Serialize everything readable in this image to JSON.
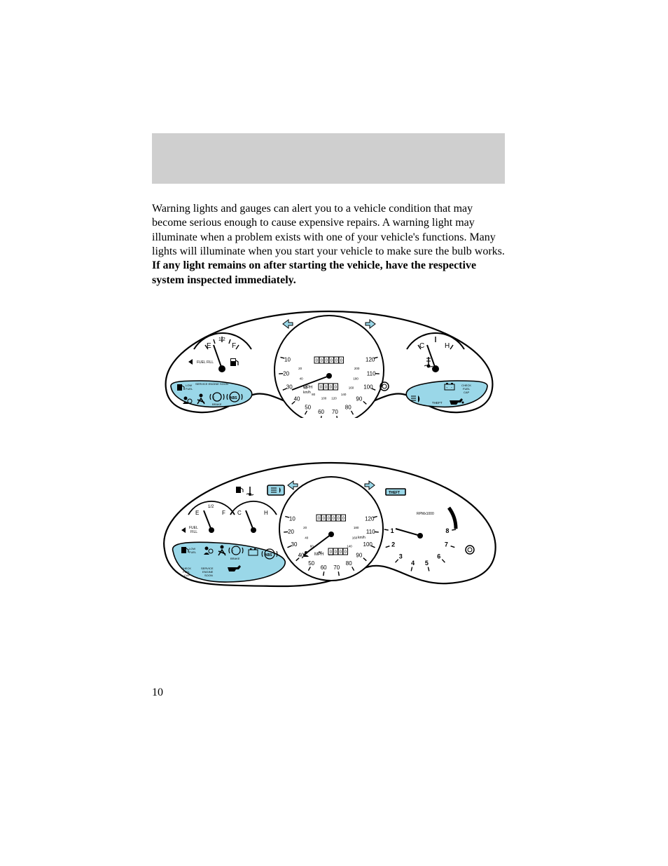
{
  "header": {
    "bg": "#cfcfcf"
  },
  "paragraph": {
    "p1": "Warning lights and gauges can alert you to a vehicle condition that may become serious enough to cause expensive repairs. A warning light may illuminate when a problem exists with one of your vehicle's functions. Many lights will illuminate when you start your vehicle to make sure the bulb works. ",
    "bold": "If any light remains on after starting the vehicle, have the respective system inspected immediately."
  },
  "page_number": "10",
  "colors": {
    "panel_fill": "#9ad7e8",
    "body_fill": "#ffffff",
    "stroke": "#000000",
    "header_grey": "#cfcfcf"
  },
  "cluster1": {
    "type": "instrument-cluster",
    "speedo": {
      "ticks": [
        "10",
        "20",
        "30",
        "40",
        "50",
        "60",
        "70",
        "80",
        "90",
        "100",
        "110",
        "120"
      ],
      "inner_ticks": [
        "20",
        "40",
        "60",
        "80",
        "100",
        "120",
        "140",
        "160",
        "180",
        "200"
      ],
      "unit1": "MPH",
      "unit2": "km/h",
      "odometer_main": [
        "0",
        "0",
        "0",
        "0",
        "0",
        "0"
      ],
      "odometer_trip": [
        "0",
        "0",
        "0",
        "0"
      ]
    },
    "fuel": {
      "left": "E",
      "mid": "1/2",
      "right": "F",
      "label": "FUEL FILL"
    },
    "temp": {
      "left": "C",
      "right": "H"
    },
    "left_panel": {
      "labels": [
        "LOW FUEL",
        "SERVICE ENGINE SOON",
        "BRAKE",
        "ABS"
      ],
      "icons": [
        "fuel-icon",
        "airbag-icon",
        "seatbelt-icon",
        "brake-warn-icon",
        "abs-icon"
      ]
    },
    "right_panel": {
      "labels": [
        "CHECK FUEL CAP",
        "THEFT"
      ],
      "icons": [
        "battery-icon",
        "highbeam-icon",
        "oil-icon"
      ]
    }
  },
  "cluster2": {
    "type": "instrument-cluster-tach",
    "speedo": {
      "ticks": [
        "10",
        "20",
        "30",
        "40",
        "50",
        "60",
        "70",
        "80",
        "90",
        "100",
        "110",
        "120"
      ],
      "inner_ticks": [
        "20",
        "40",
        "60",
        "80",
        "100",
        "120",
        "140",
        "160",
        "180"
      ],
      "unit1": "MPH",
      "unit2": "km/h",
      "odometer_main": [
        "0",
        "0",
        "0",
        "0",
        "0",
        "0"
      ],
      "odometer_trip": [
        "0",
        "0",
        "0",
        "0"
      ]
    },
    "tach": {
      "ticks": [
        "1",
        "2",
        "3",
        "4",
        "5",
        "6",
        "7",
        "8"
      ],
      "label": "RPMx1000",
      "theft": "THEFT"
    },
    "fuel": {
      "left": "E",
      "mid": "1/2",
      "right": "F"
    },
    "temp": {
      "left": "C",
      "right": "H"
    },
    "fuel_fill": "FUEL FILL",
    "top_icons": [
      "fuel-icon",
      "temp-icon",
      "highbeam-icon"
    ],
    "left_panel": {
      "labels": [
        "CHECK FUEL CAP",
        "SERVICE ENGINE SOON",
        "LOW FUEL",
        "BRAKE"
      ],
      "icons": [
        "fuel-icon",
        "airbag-icon",
        "seatbelt-icon",
        "brake-warn-icon",
        "battery-icon",
        "abs-icon",
        "oil-icon"
      ]
    }
  }
}
